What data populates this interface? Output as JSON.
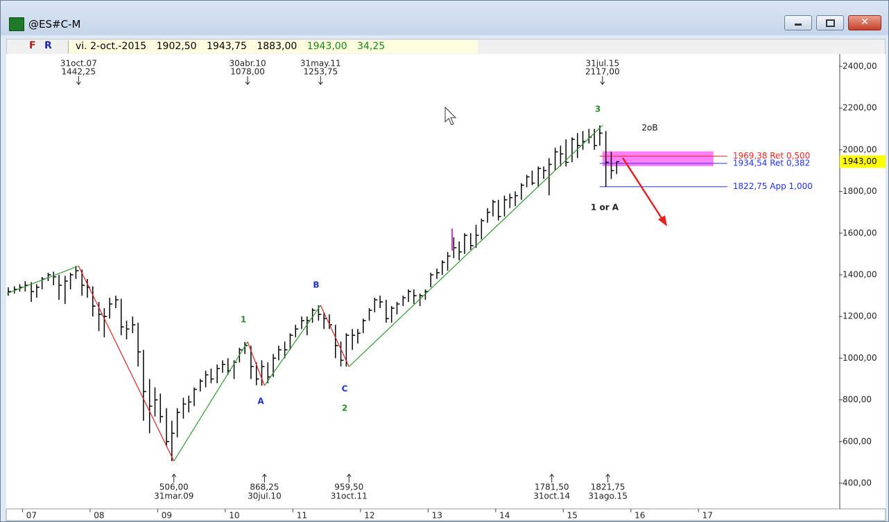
{
  "window": {
    "title": "@ES#C-M"
  },
  "toolbar": {
    "buttons": [
      "F",
      "R"
    ],
    "date": "vi. 2-oct.-2015",
    "quotes": [
      "1902,50",
      "1943,75",
      "1883,00",
      "1943,00",
      "34,25"
    ]
  },
  "chart_data": {
    "type": "ohlc",
    "xlim": [
      2006.77,
      2019.08
    ],
    "ylim": [
      277,
      2453
    ],
    "xticks": [
      {
        "value": 2007,
        "label": "07"
      },
      {
        "value": 2008,
        "label": "08"
      },
      {
        "value": 2009,
        "label": "09"
      },
      {
        "value": 2010,
        "label": "10"
      },
      {
        "value": 2011,
        "label": "11"
      },
      {
        "value": 2012,
        "label": "12"
      },
      {
        "value": 2013,
        "label": "13"
      },
      {
        "value": 2014,
        "label": "14"
      },
      {
        "value": 2015,
        "label": "15"
      },
      {
        "value": 2016,
        "label": "16"
      },
      {
        "value": 2017,
        "label": "17"
      }
    ],
    "yticks": [
      {
        "value": 400,
        "label": "400,00"
      },
      {
        "value": 600,
        "label": "600,00"
      },
      {
        "value": 800,
        "label": "800,00"
      },
      {
        "value": 1000,
        "label": "1000,00"
      },
      {
        "value": 1200,
        "label": "1200,00"
      },
      {
        "value": 1400,
        "label": "1400,00"
      },
      {
        "value": 1600,
        "label": "1600,00"
      },
      {
        "value": 1800,
        "label": "1800,00"
      },
      {
        "value": 2000,
        "label": "2000,00"
      },
      {
        "value": 2200,
        "label": "2200,00"
      },
      {
        "value": 2400,
        "label": "2400,00"
      }
    ],
    "bar_color": "#000000",
    "x": [
      2006.79,
      2006.88,
      2006.96,
      2007.04,
      2007.13,
      2007.21,
      2007.29,
      2007.38,
      2007.46,
      2007.54,
      2007.63,
      2007.71,
      2007.79,
      2007.88,
      2007.96,
      2008.04,
      2008.13,
      2008.21,
      2008.29,
      2008.38,
      2008.46,
      2008.54,
      2008.63,
      2008.71,
      2008.79,
      2008.88,
      2008.96,
      2009.04,
      2009.13,
      2009.21,
      2009.29,
      2009.38,
      2009.46,
      2009.54,
      2009.63,
      2009.71,
      2009.79,
      2009.88,
      2009.96,
      2010.04,
      2010.13,
      2010.21,
      2010.29,
      2010.38,
      2010.46,
      2010.54,
      2010.63,
      2010.71,
      2010.79,
      2010.88,
      2010.96,
      2011.04,
      2011.13,
      2011.21,
      2011.29,
      2011.38,
      2011.46,
      2011.54,
      2011.63,
      2011.71,
      2011.79,
      2011.88,
      2011.96,
      2012.04,
      2012.13,
      2012.21,
      2012.29,
      2012.38,
      2012.46,
      2012.54,
      2012.63,
      2012.71,
      2012.79,
      2012.88,
      2012.96,
      2013.04,
      2013.13,
      2013.21,
      2013.29,
      2013.38,
      2013.46,
      2013.54,
      2013.63,
      2013.71,
      2013.79,
      2013.88,
      2013.96,
      2014.04,
      2014.13,
      2014.21,
      2014.29,
      2014.38,
      2014.46,
      2014.54,
      2014.63,
      2014.71,
      2014.79,
      2014.88,
      2014.96,
      2015.04,
      2015.13,
      2015.21,
      2015.29,
      2015.38,
      2015.46,
      2015.54,
      2015.63,
      2015.71,
      2015.79
    ],
    "high": [
      1340,
      1345,
      1355,
      1370,
      1365,
      1355,
      1390,
      1410,
      1415,
      1400,
      1395,
      1410,
      1442.25,
      1425,
      1380,
      1345,
      1270,
      1240,
      1290,
      1300,
      1285,
      1180,
      1200,
      1170,
      1040,
      900,
      860,
      830,
      760,
      700,
      760,
      810,
      820,
      860,
      900,
      940,
      950,
      970,
      990,
      1000,
      990,
      1050,
      1078,
      1060,
      980,
      990,
      980,
      1020,
      1060,
      1080,
      1120,
      1160,
      1200,
      1200,
      1240,
      1253.75,
      1220,
      1210,
      1160,
      1080,
      1120,
      1140,
      1140,
      1190,
      1240,
      1290,
      1300,
      1280,
      1250,
      1270,
      1300,
      1330,
      1330,
      1310,
      1330,
      1410,
      1430,
      1470,
      1510,
      1580,
      1560,
      1600,
      1600,
      1640,
      1670,
      1720,
      1760,
      1760,
      1780,
      1790,
      1800,
      1840,
      1880,
      1900,
      1920,
      1920,
      1960,
      2010,
      2020,
      2050,
      2060,
      2080,
      2090,
      2100,
      2100,
      2117,
      2090,
      1990,
      1943.75
    ],
    "low": [
      1300,
      1310,
      1320,
      1320,
      1270,
      1290,
      1330,
      1370,
      1350,
      1280,
      1260,
      1330,
      1380,
      1300,
      1290,
      1200,
      1130,
      1100,
      1190,
      1240,
      1110,
      1090,
      1120,
      960,
      700,
      640,
      720,
      690,
      580,
      506,
      620,
      710,
      740,
      770,
      840,
      860,
      880,
      880,
      930,
      920,
      900,
      980,
      1020,
      900,
      870,
      868.25,
      880,
      910,
      990,
      1000,
      1040,
      1100,
      1140,
      1110,
      1170,
      1180,
      1140,
      1140,
      1000,
      960,
      959.5,
      1040,
      1070,
      1120,
      1180,
      1220,
      1240,
      1170,
      1170,
      1210,
      1250,
      1270,
      1260,
      1250,
      1280,
      1340,
      1380,
      1400,
      1420,
      1480,
      1470,
      1500,
      1520,
      1530,
      1570,
      1650,
      1680,
      1660,
      1680,
      1720,
      1730,
      1760,
      1820,
      1830,
      1820,
      1860,
      1781.5,
      1900,
      1920,
      1920,
      1940,
      1960,
      2000,
      2030,
      2000,
      2020,
      1821.75,
      1860,
      1883
    ],
    "close": [
      1320,
      1330,
      1340,
      1350,
      1320,
      1340,
      1380,
      1400,
      1390,
      1350,
      1370,
      1400,
      1420,
      1350,
      1340,
      1250,
      1210,
      1200,
      1260,
      1280,
      1150,
      1140,
      1160,
      1030,
      840,
      770,
      800,
      720,
      600,
      640,
      740,
      780,
      790,
      850,
      890,
      920,
      900,
      950,
      970,
      940,
      980,
      1040,
      1060,
      960,
      900,
      960,
      910,
      1000,
      1040,
      1040,
      1110,
      1140,
      1180,
      1180,
      1230,
      1210,
      1190,
      1160,
      1060,
      990,
      1110,
      1110,
      1120,
      1180,
      1230,
      1280,
      1270,
      1190,
      1240,
      1260,
      1290,
      1320,
      1300,
      1300,
      1320,
      1400,
      1410,
      1460,
      1490,
      1530,
      1510,
      1590,
      1540,
      1590,
      1660,
      1700,
      1750,
      1680,
      1760,
      1770,
      1780,
      1830,
      1870,
      1840,
      1910,
      1900,
      1930,
      1990,
      1980,
      1940,
      2050,
      2020,
      2040,
      2060,
      2020,
      2080,
      1940,
      1900,
      1943
    ],
    "zigzag": {
      "up_color": "#2e9a2e",
      "down_color": "#e02020",
      "x": [
        2006.77,
        2007.83,
        2009.24,
        2010.33,
        2010.58,
        2011.41,
        2011.83,
        2015.58
      ],
      "values": [
        1310,
        1442.25,
        506,
        1078,
        868.25,
        1253.75,
        959.5,
        2117
      ],
      "value_labels": [
        null,
        "1442,25",
        "506,00",
        "1078,00",
        "868,25",
        "1253,75",
        "959,50",
        "2117,00"
      ],
      "dates": [
        null,
        "31oct.07",
        "31mar.09",
        "30abr.10",
        "30jul.10",
        "31may.11",
        "31oct.11",
        "31jul.15"
      ]
    },
    "extra_swings": {
      "x": [
        2014.83,
        2015.66
      ],
      "values": [
        1781.5,
        1821.75
      ],
      "value_labels": [
        "1781,50",
        "1821,75"
      ],
      "dates": [
        "31oct.14",
        "31ago.15"
      ]
    },
    "levels": [
      {
        "value": 1969.38,
        "label": "1969,38 Ret 0,500",
        "color": "#ff2020"
      },
      {
        "value": 1934.54,
        "label": "1934,54 Ret 0,382",
        "color": "#2030ff"
      },
      {
        "value": 1822.75,
        "label": "1822,75 App 1,000",
        "color": "#2030ff"
      }
    ],
    "last_price": {
      "value": 1943,
      "label": "1943,00",
      "color": "#ffff00"
    },
    "wave_labels": [
      {
        "text": "1",
        "color": "#2e8b2e"
      },
      {
        "text": "A",
        "color": "#2233cc"
      },
      {
        "text": "B",
        "color": "#2233cc"
      },
      {
        "text": "C",
        "color": "#2233cc"
      },
      {
        "text": "2",
        "color": "#2e8b2e"
      },
      {
        "text": "3",
        "color": "#2e8b2e"
      },
      {
        "text": "1 or A",
        "color": "#222222"
      },
      {
        "text": "2oB",
        "color": "#111111"
      }
    ]
  }
}
